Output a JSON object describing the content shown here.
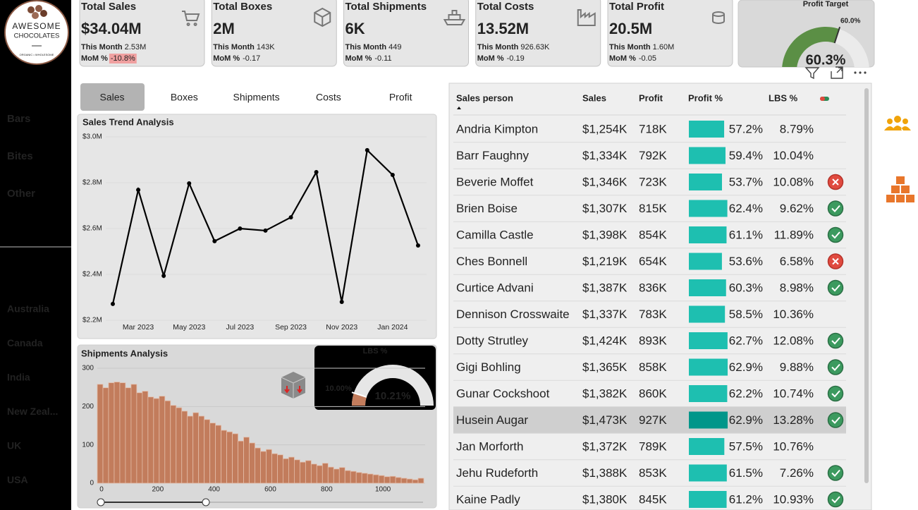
{
  "sidebar": {
    "logo": {
      "line1": "AWESOME",
      "line2": "CHOCOLATES",
      "tagline": "ORGANIC • WHOLESOME"
    },
    "categories": [
      "Bars",
      "Bites",
      "Other"
    ],
    "countries": [
      "Australia",
      "Canada",
      "India",
      "New Zeal...",
      "UK",
      "USA"
    ]
  },
  "kpis": [
    {
      "title": "Total Sales",
      "value": "$34.04M",
      "this_month_label": "This Month",
      "this_month": "2.53M",
      "mom_label": "MoM %",
      "mom": "-10.8%",
      "mom_highlight": "#f0a0a0"
    },
    {
      "title": "Total Boxes",
      "value": "2M",
      "this_month_label": "This Month",
      "this_month": "143K",
      "mom_label": "MoM %",
      "mom": "-0.17"
    },
    {
      "title": "Total Shipments",
      "value": "6K",
      "this_month_label": "This Month",
      "this_month": "449",
      "mom_label": "MoM %",
      "mom": "-0.11"
    },
    {
      "title": "Total Costs",
      "value": "13.52M",
      "this_month_label": "This Month",
      "this_month": "926.63K",
      "mom_label": "MoM %",
      "mom": "-0.19"
    },
    {
      "title": "Total Profit",
      "value": "20.5M",
      "this_month_label": "This Month",
      "this_month": "1.60M",
      "mom_label": "MoM %",
      "mom": "-0.05"
    }
  ],
  "tabs": [
    "Sales",
    "Boxes",
    "Shipments",
    "Costs",
    "Profit"
  ],
  "chart_data": [
    {
      "type": "line",
      "title": "Sales Trend Analysis",
      "color": "#000000",
      "grid": true,
      "categories": [
        null,
        "Mar 2023",
        null,
        "May 2023",
        null,
        "Jul 2023",
        null,
        "Sep 2023",
        null,
        "Nov 2023",
        null,
        "Jan 2024",
        null
      ],
      "values": [
        2.271,
        2.769,
        2.394,
        2.797,
        2.545,
        2.6,
        2.591,
        2.649,
        2.846,
        2.28,
        2.942,
        2.834,
        2.526
      ],
      "ylim": [
        2.2,
        3.0
      ],
      "yticks": [
        {
          "value": 2.2,
          "label": "$2.2M"
        },
        {
          "value": 2.4,
          "label": "$2.4M"
        },
        {
          "value": 2.6,
          "label": "$2.6M"
        },
        {
          "value": 2.8,
          "label": "$2.8M"
        },
        {
          "value": 3.0,
          "label": "$3.0M"
        }
      ]
    },
    {
      "type": "histogram",
      "title": "Shipments Analysis",
      "color": "#c27c5c",
      "grid": true,
      "bins": [
        -15,
        5,
        25,
        45,
        65,
        85,
        105,
        125,
        145,
        165,
        185,
        205,
        225,
        245,
        265,
        285,
        305,
        325,
        345,
        365,
        385,
        405,
        425,
        445,
        465,
        485,
        505,
        525,
        545,
        565,
        585,
        605,
        625,
        645,
        665,
        685,
        705,
        725,
        745,
        765,
        785,
        805,
        825,
        845,
        865,
        885,
        905,
        925,
        945,
        965,
        985,
        1005,
        1025,
        1045,
        1065,
        1085,
        1105,
        1125,
        1145
      ],
      "values": [
        258,
        249,
        262,
        264,
        262,
        249,
        258,
        236,
        240,
        225,
        221,
        227,
        215,
        203,
        197,
        188,
        175,
        184,
        175,
        166,
        157,
        151,
        138,
        134,
        129,
        110,
        120,
        105,
        92,
        83,
        88,
        77,
        74,
        64,
        68,
        61,
        55,
        59,
        50,
        46,
        52,
        42,
        37,
        41,
        33,
        31,
        28,
        26,
        24,
        22,
        20,
        17,
        18,
        15,
        13,
        11,
        9,
        13
      ],
      "xlim": [
        -15,
        1150
      ],
      "xticks": [
        0,
        200,
        400,
        600,
        800,
        1000
      ],
      "ylim": [
        0,
        300
      ],
      "yticks": [
        0,
        100,
        200,
        300
      ]
    },
    {
      "type": "gauge",
      "title": "Profit Target",
      "value": 60.3,
      "value_label": "60.3%",
      "target": 60,
      "target_label": "60.0%",
      "color": "#5b8f45"
    },
    {
      "type": "gauge",
      "title": "LBS %",
      "value": 10.21,
      "value_label": "10.21%",
      "target": 10,
      "target_label": "10.00%",
      "color": "#c27c5c"
    }
  ],
  "table": {
    "columns": [
      "Sales person",
      "Sales",
      "Profit",
      "Profit %",
      "LBS %"
    ],
    "bar_color": "#1ebfb0",
    "highlighted_row": 11,
    "rows": [
      {
        "name": "Andria Kimpton",
        "sales": "$1,254K",
        "profit": "718K",
        "profit_pct": {
          "value": 57.2,
          "label": "57.2%"
        },
        "lbs": "8.79%",
        "status": null
      },
      {
        "name": "Barr Faughny",
        "sales": "$1,334K",
        "profit": "792K",
        "profit_pct": {
          "value": 59.4,
          "label": "59.4%"
        },
        "lbs": "10.04%",
        "status": null
      },
      {
        "name": "Beverie Moffet",
        "sales": "$1,346K",
        "profit": "723K",
        "profit_pct": {
          "value": 53.7,
          "label": "53.7%"
        },
        "lbs": "10.08%",
        "status": "cross"
      },
      {
        "name": "Brien Boise",
        "sales": "$1,307K",
        "profit": "815K",
        "profit_pct": {
          "value": 62.4,
          "label": "62.4%"
        },
        "lbs": "9.62%",
        "status": "check"
      },
      {
        "name": "Camilla Castle",
        "sales": "$1,398K",
        "profit": "854K",
        "profit_pct": {
          "value": 61.1,
          "label": "61.1%"
        },
        "lbs": "11.89%",
        "status": "check"
      },
      {
        "name": "Ches Bonnell",
        "sales": "$1,219K",
        "profit": "654K",
        "profit_pct": {
          "value": 53.6,
          "label": "53.6%"
        },
        "lbs": "6.58%",
        "status": "cross"
      },
      {
        "name": "Curtice Advani",
        "sales": "$1,387K",
        "profit": "836K",
        "profit_pct": {
          "value": 60.3,
          "label": "60.3%"
        },
        "lbs": "8.98%",
        "status": "check"
      },
      {
        "name": "Dennison Crosswaite",
        "sales": "$1,337K",
        "profit": "783K",
        "profit_pct": {
          "value": 58.5,
          "label": "58.5%"
        },
        "lbs": "10.36%",
        "status": null
      },
      {
        "name": "Dotty Strutley",
        "sales": "$1,424K",
        "profit": "893K",
        "profit_pct": {
          "value": 62.7,
          "label": "62.7%"
        },
        "lbs": "12.08%",
        "status": "check"
      },
      {
        "name": "Gigi Bohling",
        "sales": "$1,365K",
        "profit": "858K",
        "profit_pct": {
          "value": 62.9,
          "label": "62.9%"
        },
        "lbs": "9.88%",
        "status": "check"
      },
      {
        "name": "Gunar Cockshoot",
        "sales": "$1,382K",
        "profit": "860K",
        "profit_pct": {
          "value": 62.2,
          "label": "62.2%"
        },
        "lbs": "10.74%",
        "status": "check"
      },
      {
        "name": "Husein Augar",
        "sales": "$1,473K",
        "profit": "927K",
        "profit_pct": {
          "value": 62.9,
          "label": "62.9%"
        },
        "lbs": "13.28%",
        "status": "check"
      },
      {
        "name": "Jan Morforth",
        "sales": "$1,372K",
        "profit": "789K",
        "profit_pct": {
          "value": 57.5,
          "label": "57.5%"
        },
        "lbs": "10.76%",
        "status": null
      },
      {
        "name": "Jehu Rudeforth",
        "sales": "$1,388K",
        "profit": "853K",
        "profit_pct": {
          "value": 61.5,
          "label": "61.5%"
        },
        "lbs": "7.26%",
        "status": "check"
      },
      {
        "name": "Kaine Padly",
        "sales": "$1,380K",
        "profit": "845K",
        "profit_pct": {
          "value": 61.2,
          "label": "61.2%"
        },
        "lbs": "10.93%",
        "status": "check"
      }
    ]
  }
}
